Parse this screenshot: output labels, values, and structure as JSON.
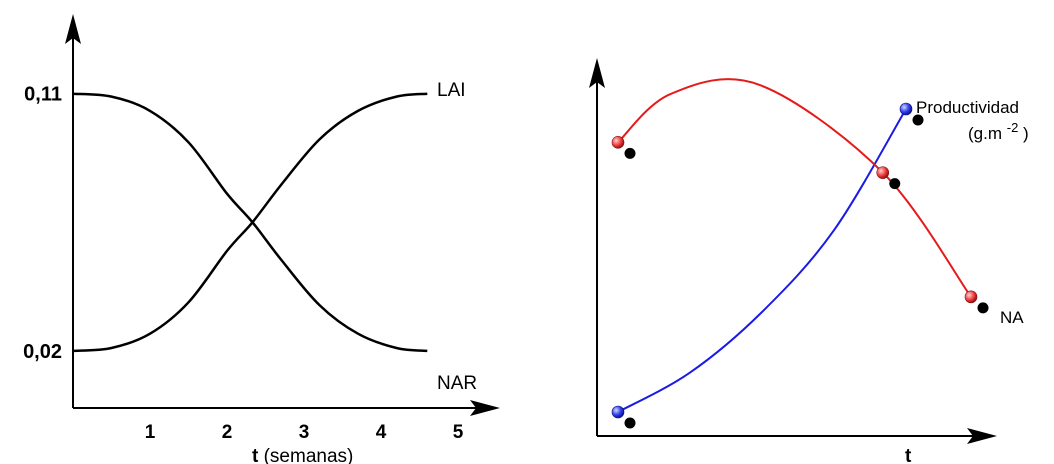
{
  "chart_data": [
    {
      "type": "line",
      "title": "",
      "xlabel_bold": "t",
      "xlabel_rest": " (semanas)",
      "ylabel": "",
      "xlim": [
        0,
        5.7
      ],
      "ylim": [
        0.0,
        0.14
      ],
      "x_ticks": [
        "1",
        "2",
        "3",
        "4",
        "5"
      ],
      "y_ticks": [
        "0,11",
        "0,02"
      ],
      "series": [
        {
          "name": "LAI",
          "color": "#000000",
          "x": [
            0,
            0.5,
            1.0,
            1.5,
            2.0,
            2.33,
            2.7,
            3.2,
            3.7,
            4.2,
            4.6
          ],
          "y": [
            0.02,
            0.021,
            0.026,
            0.037,
            0.055,
            0.065,
            0.078,
            0.094,
            0.104,
            0.109,
            0.11
          ]
        },
        {
          "name": "NAR",
          "color": "#000000",
          "x": [
            0,
            0.5,
            1.0,
            1.5,
            2.0,
            2.33,
            2.7,
            3.2,
            3.7,
            4.2,
            4.6
          ],
          "y": [
            0.11,
            0.109,
            0.104,
            0.093,
            0.075,
            0.065,
            0.052,
            0.036,
            0.026,
            0.021,
            0.02
          ]
        }
      ]
    },
    {
      "type": "line",
      "title": "",
      "xlabel": "t",
      "ylabel": "",
      "series": [
        {
          "name": "Productividad",
          "unit_main": "(g.m ",
          "unit_exp": "-2",
          "unit_close": " )",
          "color": "#1a1ae6",
          "x": [
            0,
            0.25,
            0.5,
            0.75,
            1.0
          ],
          "y": [
            0.0,
            0.13,
            0.33,
            0.6,
            1.0
          ]
        },
        {
          "name": "NA",
          "color": "#e61a1a",
          "x": [
            0,
            0.15,
            0.4,
            0.75,
            1.0
          ],
          "y": [
            0.89,
            1.05,
            1.08,
            0.79,
            0.38
          ]
        }
      ]
    }
  ]
}
